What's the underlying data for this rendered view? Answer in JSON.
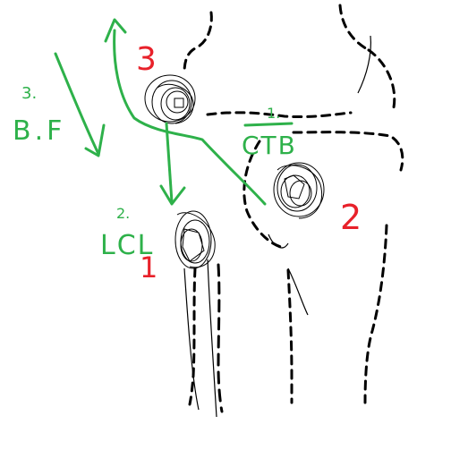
{
  "labels": {
    "bf_number": "3.",
    "bf_text": "B.F",
    "ctb_number": "1.",
    "ctb_text": "CTB",
    "lcl_number": "2.",
    "lcl_text": "LCL",
    "red_3": "3",
    "red_2": "2",
    "red_1": "1"
  },
  "colors": {
    "annotation_green": "#2eb14a",
    "annotation_red": "#e8212a",
    "sketch_black": "#000000"
  }
}
